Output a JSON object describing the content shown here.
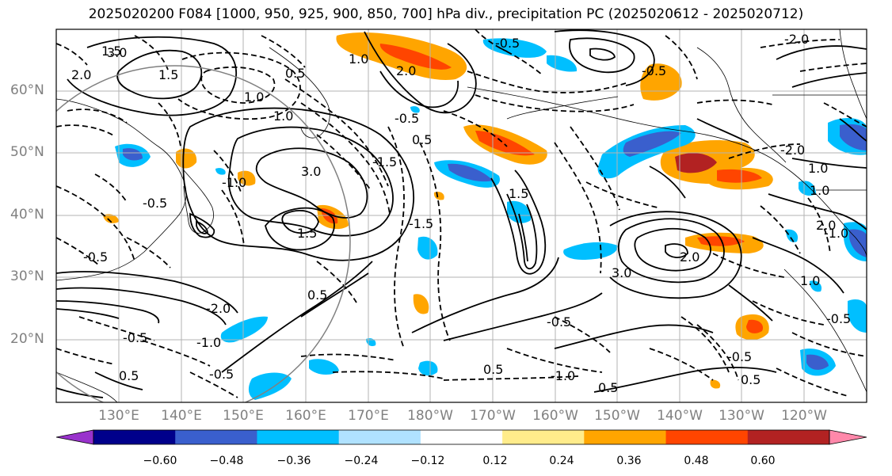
{
  "title": "2025020200 F084 [1000, 950, 925, 900, 850, 700] hPa div., precipitation PC (2025020612 - 2025020712)",
  "latitude_labels": [
    "60°N",
    "50°N",
    "40°N",
    "30°N",
    "20°N"
  ],
  "longitude_labels": [
    "130°E",
    "140°E",
    "150°E",
    "160°E",
    "170°E",
    "180°W",
    "170°W",
    "160°W",
    "150°W",
    "140°W",
    "130°W",
    "120°W"
  ],
  "colorbar": {
    "tick_labels": [
      "−0.60",
      "−0.48",
      "−0.36",
      "−0.24",
      "−0.12",
      "0.12",
      "0.24",
      "0.36",
      "0.48",
      "0.60"
    ],
    "colors": [
      "#9932cc",
      "#00008b",
      "#3a5fcd",
      "#00bfff",
      "#b0e2ff",
      "#ffffff",
      "#ffec8b",
      "#ffa500",
      "#ff4500",
      "#b22222",
      "#ff88aa"
    ]
  },
  "contour_labels": [
    "3.0",
    "2.0",
    "1.5",
    "1.0",
    "0.5",
    "-0.5",
    "-1.0",
    "-1.5",
    "-2.0",
    "3.0",
    "1.5",
    "1.0",
    "0.5",
    "-0.5",
    "-1.0",
    "2.0",
    "3.0",
    "1.5",
    "1.0",
    "-2.0",
    "0.5",
    "-0.5",
    "1.0",
    "-1.0",
    "-0.5",
    "0.5",
    "-0.5",
    "1.0",
    "2.0",
    "-0.5",
    "0.5",
    "-1.0",
    "-0.5",
    "0.5",
    "1.0",
    "-0.5",
    "-2.0",
    "2.0",
    "1.5",
    "-1.5",
    "-0.5",
    "0.5",
    "-0.5"
  ]
}
